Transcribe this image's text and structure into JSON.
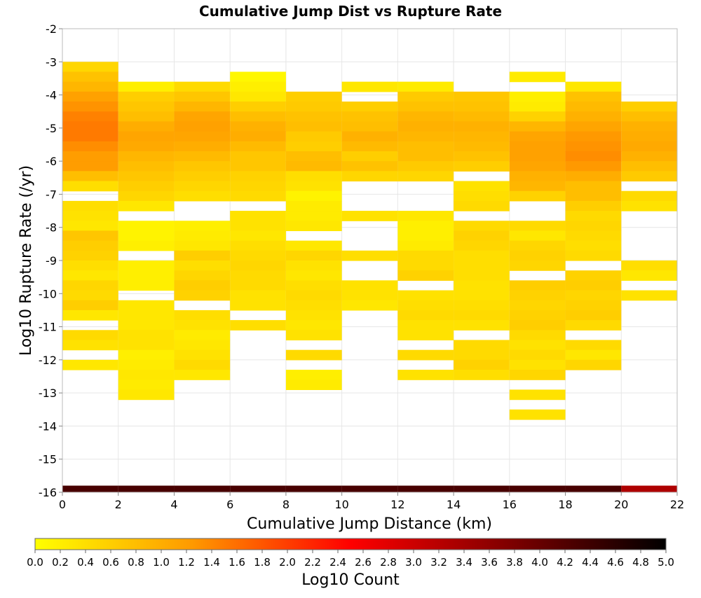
{
  "chart_data": {
    "type": "heatmap",
    "title": "Cumulative Jump Dist vs Rupture Rate",
    "xlabel": "Cumulative Jump Distance (km)",
    "ylabel": "Log10 Rupture Rate (/yr)",
    "xlim": [
      0,
      22
    ],
    "ylim": [
      -16,
      -2
    ],
    "x_ticks": [
      "0",
      "2",
      "4",
      "6",
      "8",
      "10",
      "12",
      "14",
      "16",
      "18",
      "20",
      "22"
    ],
    "y_ticks": [
      "-2",
      "-3",
      "-4",
      "-5",
      "-6",
      "-7",
      "-8",
      "-9",
      "-10",
      "-11",
      "-12",
      "-13",
      "-14",
      "-15",
      "-16"
    ],
    "grid": true,
    "x_bin_width": 2,
    "y_bin_height": 0.3,
    "colorbar": {
      "label": "Log10 Count",
      "range": [
        0,
        5
      ],
      "ticks": [
        "0.0",
        "0.2",
        "0.4",
        "0.6",
        "0.8",
        "1.0",
        "1.2",
        "1.4",
        "1.6",
        "1.8",
        "2.0",
        "2.2",
        "2.4",
        "2.6",
        "2.8",
        "3.0",
        "3.2",
        "3.4",
        "3.6",
        "3.8",
        "4.0",
        "4.2",
        "4.4",
        "4.6",
        "4.8",
        "5.0"
      ],
      "colors": [
        "#ffff00",
        "#ff9900",
        "#ff0000",
        "#800000",
        "#000000"
      ]
    },
    "columns": [
      {
        "x0": 0,
        "bottom_value": 4.3,
        "ystart": -3.0,
        "values": [
          0.5,
          0.75,
          0.9,
          1.15,
          1.3,
          1.45,
          1.5,
          1.5,
          1.35,
          1.2,
          1.2,
          0.8,
          0.4,
          null,
          0.4,
          0.35,
          0.3,
          0.7,
          0.6,
          0.55,
          0.4,
          0.3,
          0.5,
          0.45,
          0.6,
          0.3,
          null,
          0.45,
          0.35,
          null,
          0.3
        ]
      },
      {
        "x0": 2,
        "bottom_value": 4.3,
        "ystart": -3.6,
        "values": [
          0.2,
          0.6,
          0.7,
          0.8,
          1.0,
          1.1,
          1.05,
          0.9,
          0.8,
          0.7,
          0.6,
          0.5,
          0.3,
          null,
          0.15,
          0.15,
          0.2,
          null,
          0.2,
          0.2,
          0.2,
          null,
          0.3,
          0.3,
          0.3,
          0.35,
          0.35,
          0.2,
          0.25,
          0.3,
          0.25,
          0.3
        ]
      },
      {
        "x0": 4,
        "bottom_value": 4.3,
        "ystart": -3.6,
        "values": [
          0.45,
          0.7,
          0.9,
          1.1,
          1.15,
          1.1,
          1.0,
          0.85,
          0.7,
          0.6,
          0.5,
          0.4,
          null,
          null,
          0.2,
          0.25,
          0.3,
          0.6,
          0.4,
          0.5,
          0.6,
          0.55,
          null,
          0.4,
          0.35,
          0.25,
          0.3,
          0.35,
          0.45,
          0.3
        ]
      },
      {
        "x0": 6,
        "bottom_value": 4.3,
        "ystart": -3.3,
        "values": [
          0.1,
          0.2,
          0.3,
          0.6,
          0.8,
          0.95,
          1.0,
          0.85,
          0.7,
          0.7,
          0.55,
          0.5,
          0.45,
          null,
          0.35,
          0.35,
          0.3,
          0.4,
          0.45,
          0.5,
          0.45,
          0.45,
          0.35,
          0.35,
          null,
          0.4
        ]
      },
      {
        "x0": 8,
        "bottom_value": 4.3,
        "ystart": -3.9,
        "values": [
          0.6,
          0.65,
          0.75,
          0.8,
          0.65,
          0.6,
          0.8,
          0.85,
          0.4,
          0.35,
          0.15,
          0.25,
          0.25,
          0.3,
          null,
          0.3,
          0.5,
          0.35,
          0.3,
          0.4,
          0.45,
          0.4,
          0.35,
          0.3,
          0.35,
          null,
          0.45,
          null,
          0.2,
          0.25
        ]
      },
      {
        "x0": 10,
        "bottom_value": 4.3,
        "ystart": -3.6,
        "values": [
          0.3,
          null,
          0.6,
          0.75,
          0.8,
          0.95,
          0.85,
          0.6,
          0.75,
          0.5,
          null,
          null,
          null,
          0.35,
          null,
          null,
          null,
          0.4,
          null,
          null,
          0.35,
          0.35,
          0.3
        ]
      },
      {
        "x0": 12,
        "bottom_value": 4.3,
        "ystart": -3.6,
        "values": [
          0.25,
          0.65,
          0.75,
          0.9,
          0.95,
          0.9,
          0.8,
          0.8,
          0.65,
          0.5,
          null,
          null,
          null,
          0.3,
          0.2,
          0.2,
          0.25,
          0.45,
          0.45,
          0.55,
          null,
          0.35,
          0.4,
          0.45,
          0.35,
          0.35,
          null,
          0.45,
          null,
          0.35
        ]
      },
      {
        "x0": 14,
        "bottom_value": 4.3,
        "ystart": -3.9,
        "values": [
          0.7,
          0.75,
          0.85,
          0.95,
          0.9,
          0.85,
          0.75,
          0.6,
          null,
          0.35,
          0.4,
          0.45,
          null,
          0.45,
          0.55,
          0.5,
          0.4,
          0.4,
          0.4,
          0.35,
          0.35,
          0.4,
          0.45,
          0.35,
          null,
          0.45,
          0.45,
          0.55,
          0.4
        ]
      },
      {
        "x0": 16,
        "bottom_value": 4.3,
        "ystart": -3.3,
        "values": [
          0.25,
          null,
          0.2,
          0.25,
          0.55,
          0.9,
          1.1,
          1.15,
          1.15,
          1.1,
          0.95,
          0.9,
          0.55,
          null,
          null,
          0.45,
          0.3,
          0.5,
          0.55,
          0.5,
          null,
          0.6,
          0.55,
          0.5,
          0.55,
          0.6,
          0.45,
          0.35,
          0.45,
          0.35,
          0.5,
          null,
          0.35,
          null,
          0.35
        ]
      },
      {
        "x0": 18,
        "bottom_value": 4.3,
        "ystart": -3.6,
        "values": [
          0.3,
          0.75,
          0.85,
          0.95,
          1.1,
          1.25,
          1.3,
          1.35,
          1.25,
          1.0,
          0.8,
          0.8,
          0.6,
          0.45,
          0.5,
          0.45,
          0.4,
          0.45,
          null,
          0.55,
          0.6,
          0.5,
          0.55,
          0.6,
          0.45,
          null,
          0.45,
          0.3,
          0.5
        ]
      },
      {
        "x0": 20,
        "bottom_value": 3.3,
        "ystart": -4.2,
        "values": [
          0.6,
          0.8,
          0.95,
          1.0,
          1.05,
          0.95,
          0.8,
          0.65,
          null,
          0.45,
          0.35,
          null,
          null,
          null,
          null,
          null,
          0.4,
          0.3,
          null,
          0.35
        ]
      }
    ]
  }
}
